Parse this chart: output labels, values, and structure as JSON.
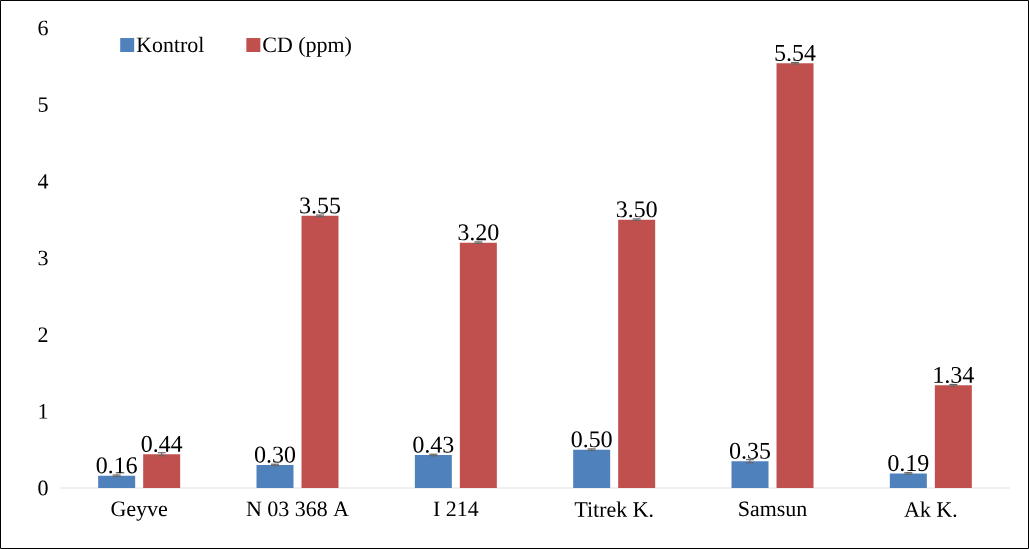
{
  "chart_data": {
    "type": "bar",
    "categories": [
      "Geyve",
      "N 03 368 A",
      "I 214",
      "Titrek K.",
      "Samsun",
      "Ak K."
    ],
    "series": [
      {
        "name": "Kontrol",
        "color": "#4f81bd",
        "values": [
          0.16,
          0.3,
          0.43,
          0.5,
          0.35,
          0.19
        ],
        "errors": [
          0.01,
          0.01,
          0.01,
          0.01,
          0.02,
          0.01
        ],
        "value_labels": [
          "0.16",
          "0.30",
          "0.43",
          "0.50",
          "0.35",
          "0.19"
        ]
      },
      {
        "name": "CD  (ppm)",
        "color": "#c0504d",
        "values": [
          0.44,
          3.55,
          3.2,
          3.5,
          5.54,
          1.34
        ],
        "errors": [
          0.02,
          0.01,
          0.01,
          0.01,
          0.01,
          0.01
        ],
        "value_labels": [
          "0.44",
          "3.55",
          "3.20",
          "3.50",
          "5.54",
          "1.34"
        ]
      }
    ],
    "ylim": [
      0,
      6
    ],
    "yticks": [
      0,
      1,
      2,
      3,
      4,
      5,
      6
    ],
    "legend": "top left",
    "grid": false
  }
}
